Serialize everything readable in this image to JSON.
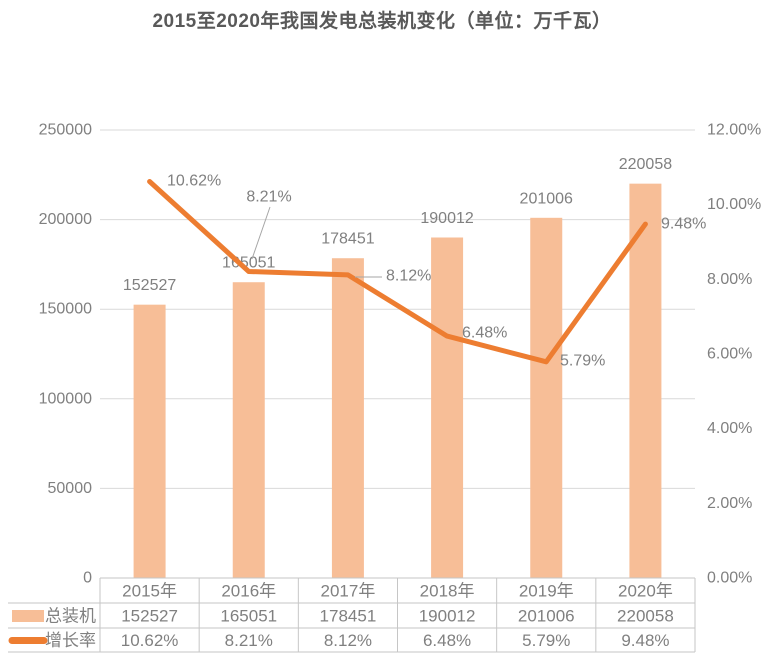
{
  "title": "2015至2020年我国发电总装机变化（单位：万千瓦）",
  "chart_data": {
    "type": "bar-line-combo",
    "categories": [
      "2015年",
      "2016年",
      "2017年",
      "2018年",
      "2019年",
      "2020年"
    ],
    "series": [
      {
        "name": "总装机",
        "type": "bar",
        "axis": "left",
        "values": [
          152527,
          165051,
          178451,
          190012,
          201006,
          220058
        ],
        "labels": [
          "152527",
          "165051",
          "178451",
          "190012",
          "201006",
          "220058"
        ],
        "color": "#F7BE97"
      },
      {
        "name": "增长率",
        "type": "line",
        "axis": "right",
        "values": [
          10.62,
          8.21,
          8.12,
          6.48,
          5.79,
          9.48
        ],
        "labels": [
          "10.62%",
          "8.21%",
          "8.12%",
          "6.48%",
          "5.79%",
          "9.48%"
        ],
        "color": "#ED7D31"
      }
    ],
    "left_axis": {
      "min": 0,
      "max": 250000,
      "step": 50000,
      "tick_labels": [
        "250000",
        "200000",
        "150000",
        "100000",
        "50000",
        "0"
      ]
    },
    "right_axis": {
      "min": 0,
      "max": 12,
      "step": 2,
      "tick_labels": [
        "12.00%",
        "10.00%",
        "8.00%",
        "6.00%",
        "4.00%",
        "2.00%",
        "0.00%"
      ]
    },
    "grid": true,
    "data_table_shown": true,
    "legend_position": "data-table-left"
  },
  "colors": {
    "bar": "#F7BE97",
    "line": "#ED7D31",
    "gridline": "#D9D9D9",
    "table_border": "#C6C6C6",
    "axis_text": "#808080",
    "title_text": "#595959",
    "leader_line": "#A6A6A6",
    "background": "#FFFFFF"
  }
}
